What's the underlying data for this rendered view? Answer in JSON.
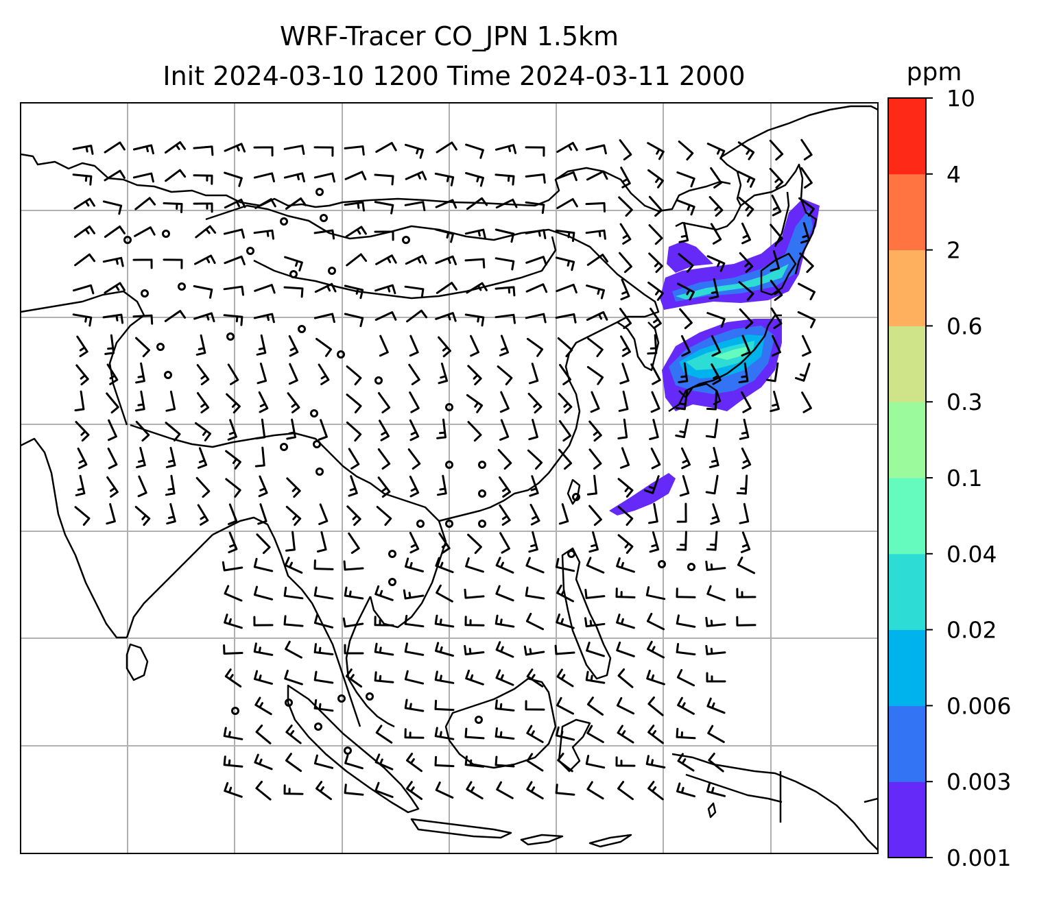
{
  "title": {
    "line1": "WRF-Tracer CO_JPN 1.5km",
    "line2": "Init 2024-03-10 1200 Time 2024-03-11 2000"
  },
  "colorbar": {
    "unit": "ppm",
    "levels": [
      "0.001",
      "0.003",
      "0.006",
      "0.02",
      "0.04",
      "0.1",
      "0.3",
      "0.6",
      "2",
      "4",
      "10"
    ],
    "colors": [
      "#6529f8",
      "#3374f5",
      "#00b3ec",
      "#2edcd6",
      "#66fbbe",
      "#9afa9c",
      "#cfe388",
      "#ffb05f",
      "#ff7440",
      "#ff2917"
    ]
  },
  "map": {
    "gridline_color": "#b0b0b0",
    "coastline_color": "#000000",
    "barb_color": "#000000",
    "tracer_level_max_shown": "0.04"
  }
}
